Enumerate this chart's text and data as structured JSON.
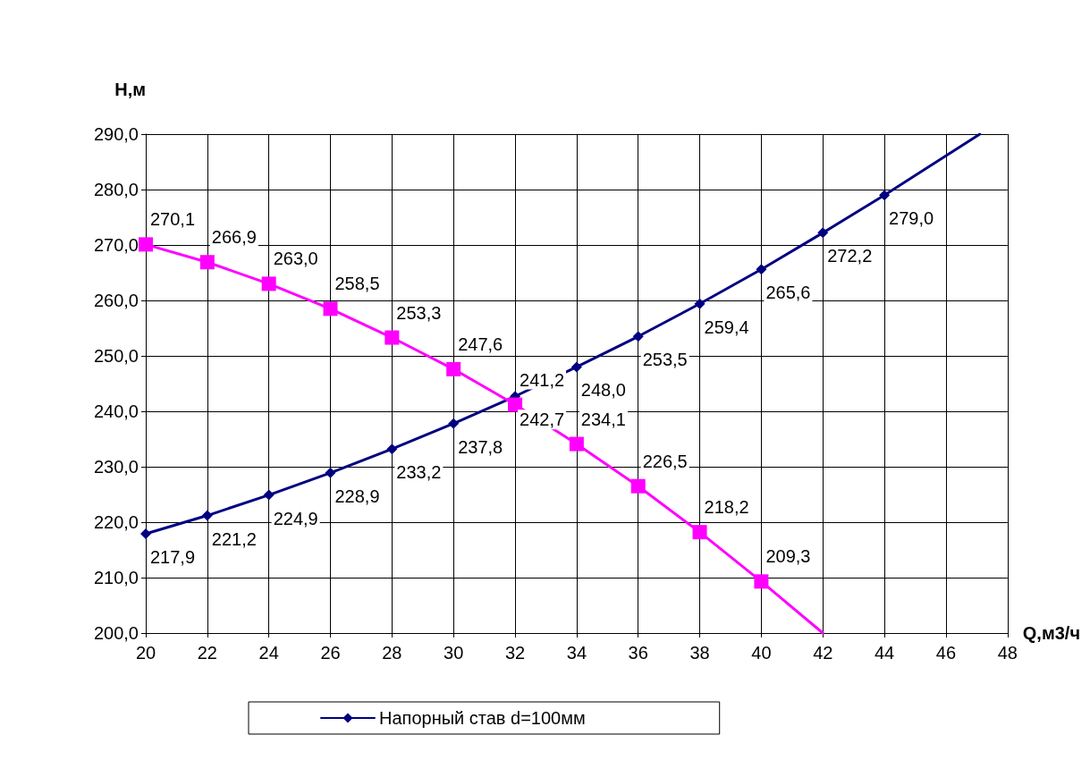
{
  "chart_data": {
    "type": "line",
    "xlabel": "Q,м3/ч",
    "ylabel": "H,м",
    "xlim": [
      20,
      48
    ],
    "xticks": [
      20,
      22,
      24,
      26,
      28,
      30,
      32,
      34,
      36,
      38,
      40,
      42,
      44,
      46,
      48
    ],
    "ylim": [
      200,
      290
    ],
    "yticks": [
      {
        "value": 200,
        "label": "200,0"
      },
      {
        "value": 210,
        "label": "210,0"
      },
      {
        "value": 220,
        "label": "220,0"
      },
      {
        "value": 230,
        "label": "230,0"
      },
      {
        "value": 240,
        "label": "240,0"
      },
      {
        "value": 250,
        "label": "250,0"
      },
      {
        "value": 260,
        "label": "260,0"
      },
      {
        "value": 270,
        "label": "270,0"
      },
      {
        "value": 280,
        "label": "280,0"
      },
      {
        "value": 290,
        "label": "290,0"
      }
    ],
    "grid": true,
    "legend": "bottom",
    "series": [
      {
        "name": "Напорный став d=100мм",
        "color": "#000080",
        "marker": "diamond",
        "x": [
          20,
          22,
          24,
          26,
          28,
          30,
          32,
          34,
          36,
          38,
          40,
          42,
          44,
          47.1
        ],
        "values": [
          217.9,
          221.2,
          224.9,
          228.9,
          233.2,
          237.8,
          242.7,
          248.0,
          253.5,
          259.4,
          265.6,
          272.2,
          279.0,
          290
        ],
        "value_labels": [
          "217,9",
          "221,2",
          "224,9",
          "228,9",
          "233,2",
          "237,8",
          "242,7",
          "248,0",
          "253,5",
          "259,4",
          "265,6",
          "272,2",
          "279,0",
          null
        ]
      },
      {
        "color": "#ff00ff",
        "marker": "square",
        "x": [
          20,
          22,
          24,
          26,
          28,
          30,
          32,
          34,
          36,
          38,
          40,
          42
        ],
        "values": [
          270.1,
          266.9,
          263.0,
          258.5,
          253.3,
          247.6,
          241.2,
          234.1,
          226.5,
          218.2,
          209.3,
          200
        ],
        "value_labels": [
          "270,1",
          "266,9",
          "263,0",
          "258,5",
          "253,3",
          "247,6",
          "241,2",
          "234,1",
          "226,5",
          "218,2",
          "209,3",
          null
        ]
      }
    ]
  }
}
